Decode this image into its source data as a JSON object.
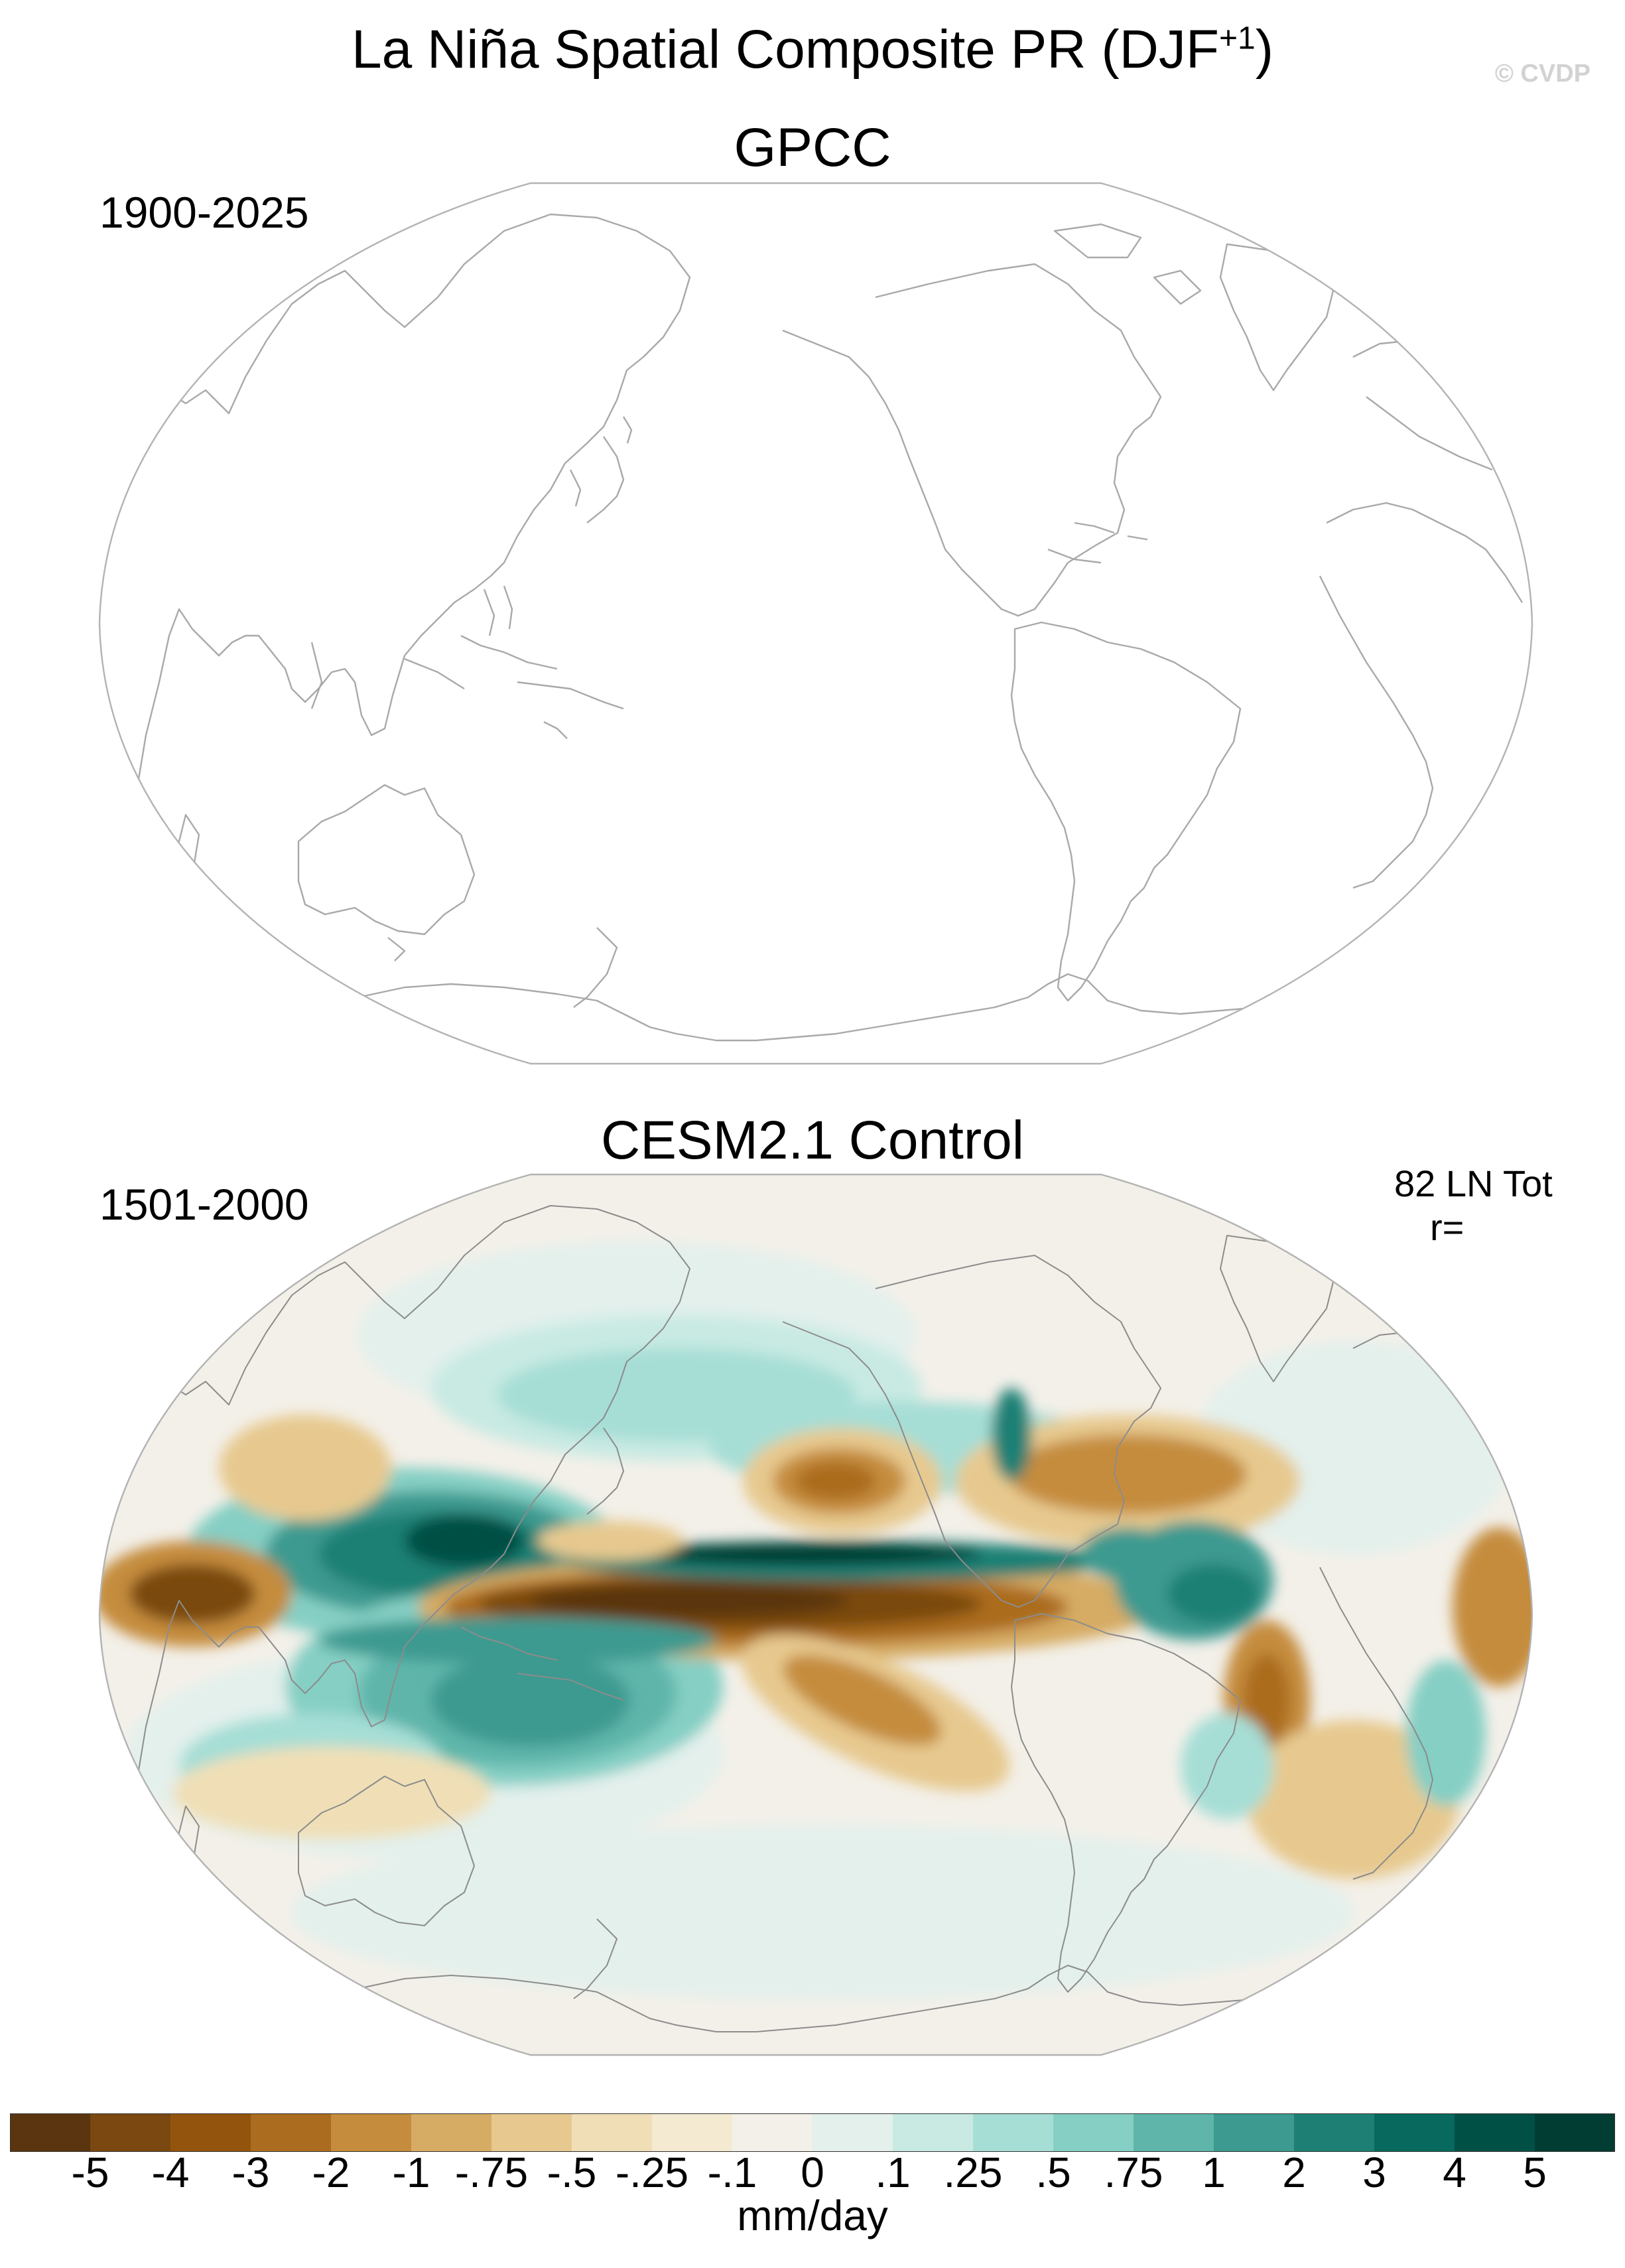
{
  "figure": {
    "title_prefix": "La Niña Spatial Composite PR (DJF",
    "title_sup": "+1",
    "title_suffix": ")",
    "copyright": "© CVDP"
  },
  "panels": [
    {
      "name": "GPCC",
      "years": "1900-2025",
      "composite_count": "",
      "correlation": "",
      "data_shown": false
    },
    {
      "name": "CESM2.1 Control",
      "years": "1501-2000",
      "composite_count": "82 LN Tot",
      "correlation": "r=",
      "data_shown": true
    }
  ],
  "colorbar": {
    "units": "mm/day",
    "colors": [
      "#5a3510",
      "#7a4810",
      "#93540e",
      "#ab6c1f",
      "#c58c3d",
      "#d6ab63",
      "#e7c98f",
      "#f0dfb6",
      "#f4ead1",
      "#f3f0e9",
      "#e3f0ec",
      "#c8eae3",
      "#a6ded6",
      "#85cfc4",
      "#5fb5aa",
      "#3c9a90",
      "#1e8075",
      "#08695e",
      "#005045",
      "#013d32"
    ],
    "tick_labels": [
      "-5",
      "-4",
      "-3",
      "-2",
      "-1",
      "-.75",
      "-.5",
      "-.25",
      "-.1",
      "0",
      ".1",
      ".25",
      ".5",
      ".75",
      "1",
      "2",
      "3",
      "4",
      "5"
    ]
  }
}
